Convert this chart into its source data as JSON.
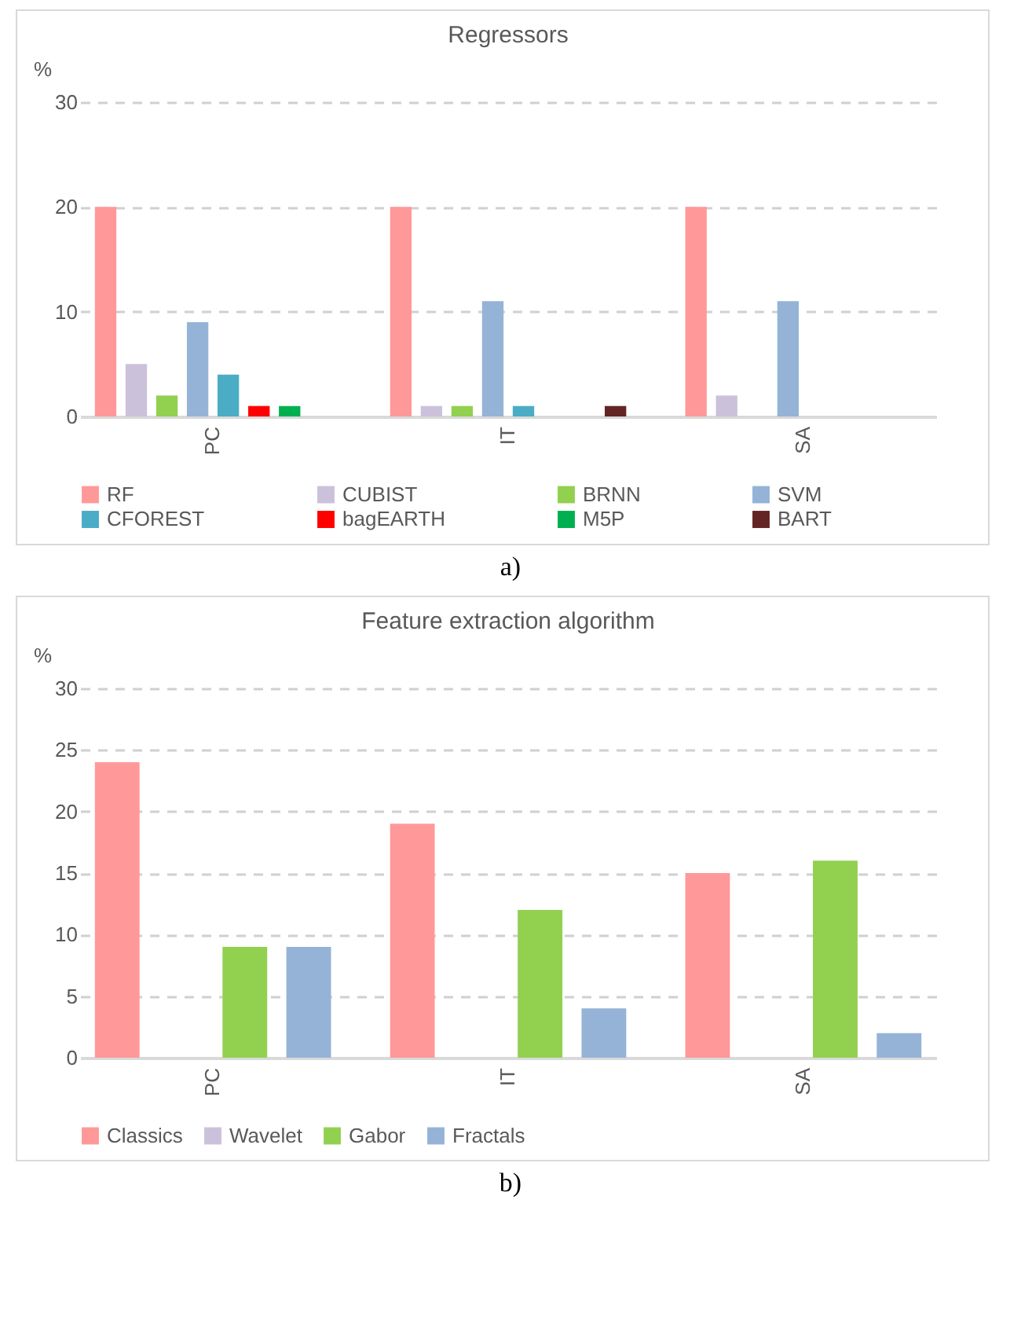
{
  "chart_data": [
    {
      "type": "bar",
      "title": "Regressors",
      "ylabel": "%",
      "categories": [
        "PC",
        "IT",
        "SA"
      ],
      "ylim": [
        0,
        30
      ],
      "yticks": [
        0,
        10,
        20,
        30
      ],
      "grid": "y",
      "legend": "bottom",
      "annotations": [
        "a)"
      ],
      "series": [
        {
          "name": "RF",
          "color": "#ff9999",
          "values": [
            20,
            20,
            20
          ]
        },
        {
          "name": "CUBIST",
          "color": "#ccc1da",
          "values": [
            5,
            1,
            2
          ]
        },
        {
          "name": "BRNN",
          "color": "#92d050",
          "values": [
            2,
            1,
            0
          ]
        },
        {
          "name": "SVM",
          "color": "#95b3d7",
          "values": [
            9,
            11,
            11
          ]
        },
        {
          "name": "CFOREST",
          "color": "#4bacc6",
          "values": [
            4,
            1,
            0
          ]
        },
        {
          "name": "bagEARTH",
          "color": "#ff0000",
          "values": [
            1,
            0,
            0
          ]
        },
        {
          "name": "M5P",
          "color": "#00b050",
          "values": [
            1,
            0,
            0
          ]
        },
        {
          "name": "BART",
          "color": "#632523",
          "values": [
            0,
            1,
            0
          ]
        }
      ]
    },
    {
      "type": "bar",
      "title": "Feature extraction algorithm",
      "ylabel": "%",
      "categories": [
        "PC",
        "IT",
        "SA"
      ],
      "ylim": [
        0,
        30
      ],
      "yticks": [
        0,
        5,
        10,
        15,
        20,
        25,
        30
      ],
      "grid": "y",
      "legend": "bottom",
      "annotations": [
        "b)"
      ],
      "series": [
        {
          "name": "Classics",
          "color": "#ff9999",
          "values": [
            24,
            19,
            15
          ]
        },
        {
          "name": "Wavelet",
          "color": "#ccc1da",
          "values": [
            0,
            0,
            0
          ]
        },
        {
          "name": "Gabor",
          "color": "#92d050",
          "values": [
            9,
            12,
            16
          ]
        },
        {
          "name": "Fractals",
          "color": "#95b3d7",
          "values": [
            9,
            4,
            2
          ]
        }
      ]
    }
  ]
}
